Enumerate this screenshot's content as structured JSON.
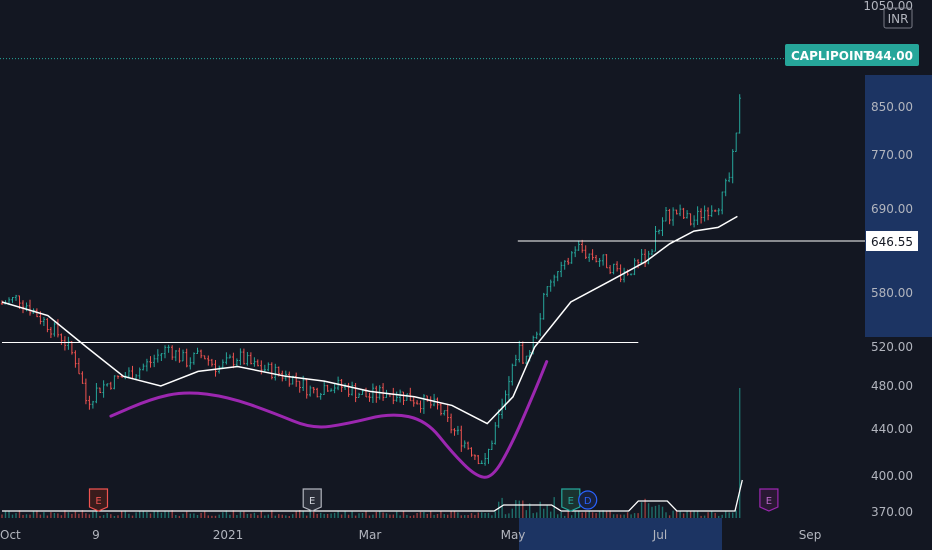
{
  "symbol": "CAPLIPOINT",
  "currency": "INR",
  "colors": {
    "background": "#131722",
    "up": "#26a69a",
    "down": "#ef5350",
    "ma": "#ffffff",
    "cup": "#9c27b0",
    "last_price_tag": "#26a69a",
    "axis_highlight": "#1e3a6e",
    "hline": "#ffffff"
  },
  "price_tag": {
    "label": "CAPLIPOINT",
    "value": "944.00"
  },
  "level_tag": {
    "value": "646.55"
  },
  "chart_data": {
    "type": "candlestick",
    "title": "",
    "ylim": [
      360,
      1060
    ],
    "y_ticks": [
      "1050.00",
      "850.00",
      "770.00",
      "690.00",
      "646.55",
      "580.00",
      "520.00",
      "480.00",
      "440.00",
      "400.00",
      "370.00"
    ],
    "x_ticks": [
      "Oct",
      "9",
      "2021",
      "Mar",
      "May",
      "Jul",
      "Sep"
    ],
    "last_price": 944.0,
    "horizontal_levels": [
      {
        "value": 646.55,
        "from": "2021-05-03",
        "to": "right-edge"
      },
      {
        "value": 525.0,
        "from": "2020-10-01",
        "to": "2021-06-22"
      }
    ],
    "moving_average_points": [
      [
        "2020-10-01",
        570
      ],
      [
        "2020-10-20",
        555
      ],
      [
        "2020-11-05",
        520
      ],
      [
        "2020-11-20",
        490
      ],
      [
        "2020-12-05",
        480
      ],
      [
        "2020-12-20",
        495
      ],
      [
        "2021-01-05",
        500
      ],
      [
        "2021-01-25",
        490
      ],
      [
        "2021-02-10",
        485
      ],
      [
        "2021-03-01",
        475
      ],
      [
        "2021-03-20",
        470
      ],
      [
        "2021-04-05",
        462
      ],
      [
        "2021-04-20",
        445
      ],
      [
        "2021-05-01",
        470
      ],
      [
        "2021-05-10",
        520
      ],
      [
        "2021-05-25",
        570
      ],
      [
        "2021-06-10",
        595
      ],
      [
        "2021-06-25",
        620
      ],
      [
        "2021-07-05",
        643
      ],
      [
        "2021-07-15",
        660
      ],
      [
        "2021-07-25",
        665
      ],
      [
        "2021-08-02",
        680
      ]
    ],
    "cup_curve_points": [
      [
        "2020-11-15",
        452
      ],
      [
        "2020-12-01",
        468
      ],
      [
        "2020-12-15",
        475
      ],
      [
        "2021-01-01",
        470
      ],
      [
        "2021-01-20",
        455
      ],
      [
        "2021-02-05",
        440
      ],
      [
        "2021-02-20",
        445
      ],
      [
        "2021-03-10",
        455
      ],
      [
        "2021-03-25",
        448
      ],
      [
        "2021-04-05",
        420
      ],
      [
        "2021-04-15",
        400
      ],
      [
        "2021-04-22",
        398
      ],
      [
        "2021-04-30",
        425
      ],
      [
        "2021-05-10",
        475
      ],
      [
        "2021-05-15",
        505
      ]
    ],
    "price_series": [
      [
        "2020-10-01",
        568
      ],
      [
        "2020-10-08",
        575
      ],
      [
        "2020-10-14",
        560
      ],
      [
        "2020-10-20",
        545
      ],
      [
        "2020-10-26",
        530
      ],
      [
        "2020-11-01",
        505
      ],
      [
        "2020-11-05",
        465
      ],
      [
        "2020-11-10",
        478
      ],
      [
        "2020-11-18",
        488
      ],
      [
        "2020-11-25",
        495
      ],
      [
        "2020-12-01",
        505
      ],
      [
        "2020-12-08",
        520
      ],
      [
        "2020-12-15",
        505
      ],
      [
        "2020-12-22",
        512
      ],
      [
        "2020-12-28",
        498
      ],
      [
        "2021-01-05",
        510
      ],
      [
        "2021-01-12",
        500
      ],
      [
        "2021-01-20",
        495
      ],
      [
        "2021-01-28",
        488
      ],
      [
        "2021-02-05",
        475
      ],
      [
        "2021-02-12",
        482
      ],
      [
        "2021-02-20",
        478
      ],
      [
        "2021-02-28",
        470
      ],
      [
        "2021-03-08",
        475
      ],
      [
        "2021-03-15",
        472
      ],
      [
        "2021-03-22",
        466
      ],
      [
        "2021-03-30",
        460
      ],
      [
        "2021-04-05",
        440
      ],
      [
        "2021-04-12",
        425
      ],
      [
        "2021-04-19",
        410
      ],
      [
        "2021-04-24",
        445
      ],
      [
        "2021-04-28",
        470
      ],
      [
        "2021-05-03",
        520
      ],
      [
        "2021-05-06",
        505
      ],
      [
        "2021-05-10",
        530
      ],
      [
        "2021-05-14",
        575
      ],
      [
        "2021-05-18",
        600
      ],
      [
        "2021-05-22",
        610
      ],
      [
        "2021-05-27",
        640
      ],
      [
        "2021-06-01",
        630
      ],
      [
        "2021-06-08",
        620
      ],
      [
        "2021-06-15",
        605
      ],
      [
        "2021-06-22",
        615
      ],
      [
        "2021-06-28",
        640
      ],
      [
        "2021-07-02",
        680
      ],
      [
        "2021-07-08",
        685
      ],
      [
        "2021-07-14",
        672
      ],
      [
        "2021-07-20",
        690
      ],
      [
        "2021-07-26",
        700
      ],
      [
        "2021-07-30",
        740
      ],
      [
        "2021-08-02",
        810
      ],
      [
        "2021-08-04",
        944
      ]
    ],
    "events": [
      {
        "label": "E",
        "date": "2020-11-10",
        "style": "earnings-red"
      },
      {
        "label": "E",
        "date": "2021-02-05",
        "style": "earnings-gray"
      },
      {
        "label": "E",
        "date": "2021-05-25",
        "style": "earnings-teal"
      },
      {
        "label": "D",
        "date": "2021-06-01",
        "style": "dividend-blue"
      },
      {
        "label": "E",
        "date": "2021-08-15",
        "style": "earnings-purple"
      }
    ]
  }
}
